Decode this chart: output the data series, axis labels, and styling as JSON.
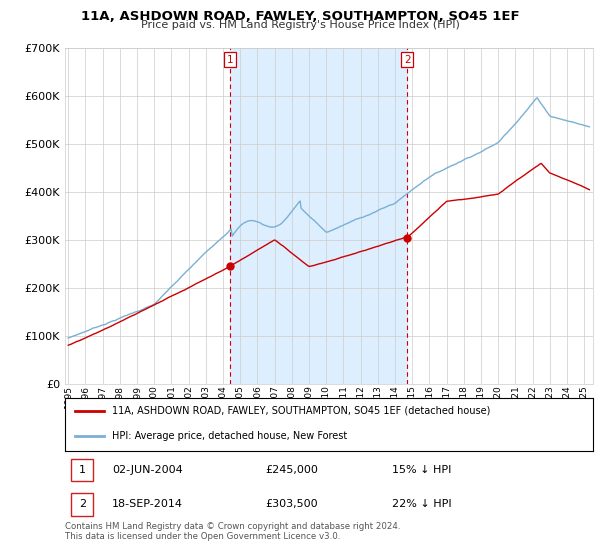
{
  "title": "11A, ASHDOWN ROAD, FAWLEY, SOUTHAMPTON, SO45 1EF",
  "subtitle": "Price paid vs. HM Land Registry's House Price Index (HPI)",
  "legend_line1": "11A, ASHDOWN ROAD, FAWLEY, SOUTHAMPTON, SO45 1EF (detached house)",
  "legend_line2": "HPI: Average price, detached house, New Forest",
  "annotation1_date": "02-JUN-2004",
  "annotation1_price": "£245,000",
  "annotation1_hpi": "15% ↓ HPI",
  "annotation2_date": "18-SEP-2014",
  "annotation2_price": "£303,500",
  "annotation2_hpi": "22% ↓ HPI",
  "footer": "Contains HM Land Registry data © Crown copyright and database right 2024.\nThis data is licensed under the Open Government Licence v3.0.",
  "red_color": "#cc0000",
  "blue_color": "#7ab0d4",
  "shade_color": "#ddeeff",
  "marker1_x": 2004.42,
  "marker2_x": 2014.72,
  "marker1_y": 245000,
  "marker2_y": 303500,
  "ylim": [
    0,
    700000
  ],
  "xlim": [
    1994.8,
    2025.5
  ],
  "bg_color": "#f8f8f8"
}
